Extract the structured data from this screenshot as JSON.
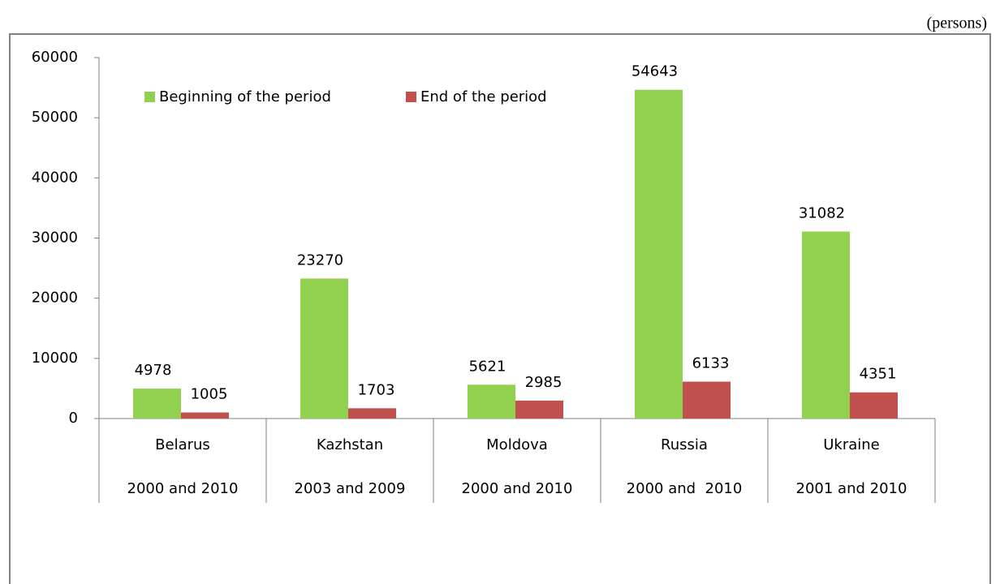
{
  "chart_data": {
    "type": "bar",
    "unit_label": "(persons)",
    "categories": [
      "Belarus",
      "Kazhstan",
      "Moldova",
      "Russia",
      "Ukraine"
    ],
    "periods": [
      "2000 and 2010",
      "2003 and 2009",
      "2000 and 2010",
      "2000 and  2010",
      "2001 and 2010"
    ],
    "series": [
      {
        "name": "Beginning of the period",
        "color": "#92d050",
        "values": [
          4978,
          23270,
          5621,
          54643,
          31082
        ]
      },
      {
        "name": "End of the period",
        "color": "#c0504d",
        "values": [
          1005,
          1703,
          2985,
          6133,
          4351
        ]
      }
    ],
    "ylim": [
      0,
      60000
    ],
    "yticks": [
      0,
      10000,
      20000,
      30000,
      40000,
      50000,
      60000
    ],
    "grid": false,
    "legend": "top"
  }
}
